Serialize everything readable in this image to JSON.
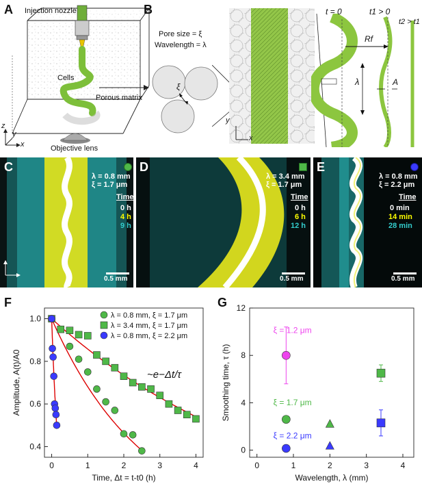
{
  "panels": {
    "A": {
      "letter": "A",
      "injection_nozzle": "Injection nozzle",
      "cells": "Cells",
      "porous_matrix": "Porous matrix",
      "objective_lens": "Objective lens",
      "axis_z": "z",
      "axis_y": "y",
      "axis_x": "x"
    },
    "B": {
      "letter": "B",
      "pore_size": "Pore size = ξ",
      "wavelength": "Wavelength = λ",
      "xi": "ξ",
      "t0": "t = 0",
      "t1": "t1 > 0",
      "t2": "t2 > t1",
      "Rf": "Rf",
      "lambda": "λ",
      "A": "A",
      "axis_y": "y",
      "axis_x": "x"
    },
    "C": {
      "letter": "C",
      "lambda": "λ = 0.8 mm",
      "xi": "ξ = 1.7 μm",
      "time_header": "Time",
      "times": [
        "0 h",
        "4 h",
        "9 h"
      ],
      "scale": "0.5 mm",
      "marker_color": "#4fb848"
    },
    "D": {
      "letter": "D",
      "lambda": "λ = 3.4 mm",
      "xi": "ξ = 1.7 μm",
      "time_header": "Time",
      "times": [
        "0 h",
        "6 h",
        "12 h"
      ],
      "scale": "0.5 mm",
      "marker_color": "#4fb848"
    },
    "E": {
      "letter": "E",
      "lambda": "λ = 0.8 mm",
      "xi": "ξ = 2.2 μm",
      "time_header": "Time",
      "times": [
        "0 min",
        "14 min",
        "28 min"
      ],
      "scale": "0.5 mm",
      "marker_color": "#3a3aff"
    }
  },
  "time_colors": [
    "#ffffff",
    "#ffff00",
    "#33cccc"
  ],
  "colors": {
    "green": "#4fb848",
    "blue": "#3a3aff",
    "magenta": "#ee44ee",
    "red": "#dd0000",
    "gel_green": "#8cc63f",
    "cyan": "#22c4c4",
    "yellow": "#f2f200"
  },
  "chart_data": [
    {
      "panel": "F",
      "type": "scatter",
      "xlabel": "Time, Δt = t-t0 (h)",
      "ylabel": "Amplitude, A(t)/A0",
      "xlim": [
        -0.2,
        4.2
      ],
      "ylim": [
        0.35,
        1.05
      ],
      "xticks": [
        0,
        1,
        2,
        3,
        4
      ],
      "yticks": [
        0.4,
        0.6,
        0.8,
        1.0
      ],
      "annotation": "~e−Δt/τ",
      "legend_position": "top-right",
      "series": [
        {
          "name": "λ = 0.8 mm, ξ = 1.7 μm",
          "marker": "circle",
          "color": "#4fb848",
          "x": [
            0,
            0.25,
            0.5,
            0.75,
            1.0,
            1.25,
            1.5,
            1.75,
            2.0,
            2.25,
            2.5
          ],
          "y": [
            1.0,
            0.95,
            0.87,
            0.81,
            0.75,
            0.67,
            0.61,
            0.57,
            0.46,
            0.455,
            0.38
          ],
          "fit_tau": 2.6
        },
        {
          "name": "λ = 3.4 mm, ξ = 1.7 μm",
          "marker": "square",
          "color": "#4fb848",
          "x": [
            0,
            0.25,
            0.5,
            0.75,
            1.0,
            1.25,
            1.5,
            1.75,
            2.0,
            2.25,
            2.5,
            2.75,
            3.0,
            3.25,
            3.5,
            3.75,
            4.0
          ],
          "y": [
            1.0,
            0.95,
            0.945,
            0.925,
            0.92,
            0.83,
            0.8,
            0.77,
            0.73,
            0.7,
            0.68,
            0.67,
            0.64,
            0.6,
            0.57,
            0.55,
            0.53
          ],
          "fit_tau": 6.5
        },
        {
          "name": "λ = 0.8 mm, ξ = 2.2 μm",
          "marker": "circle",
          "color": "#3a3aff",
          "x": [
            0,
            0.02,
            0.04,
            0.06,
            0.08,
            0.1,
            0.12,
            0.14
          ],
          "y": [
            1.0,
            0.86,
            0.82,
            0.73,
            0.6,
            0.58,
            0.55,
            0.5
          ],
          "fit_tau": 0.2
        }
      ]
    },
    {
      "panel": "G",
      "type": "scatter",
      "xlabel": "Wavelength, λ (mm)",
      "ylabel": "Smoothing time, τ (h)",
      "xlim": [
        -0.2,
        4.3
      ],
      "ylim": [
        -0.6,
        12
      ],
      "xticks": [
        0,
        1,
        2,
        3,
        4
      ],
      "yticks": [
        0,
        4,
        8,
        12
      ],
      "annotations": [
        {
          "text": "ξ = 1.2 μm",
          "color": "#ee44ee"
        },
        {
          "text": "ξ = 1.7 μm",
          "color": "#4fb848"
        },
        {
          "text": "ξ = 2.2 μm",
          "color": "#3a3aff"
        }
      ],
      "series": [
        {
          "name": "ξ = 1.2 μm",
          "color": "#ee44ee",
          "marker": "circle",
          "x": [
            0.8
          ],
          "y": [
            8.0
          ],
          "err": [
            2.4
          ]
        },
        {
          "name": "ξ = 1.7 μm",
          "color": "#4fb848",
          "marker": "mixed",
          "points": [
            {
              "x": 0.8,
              "y": 2.6,
              "marker": "circle",
              "err": 0
            },
            {
              "x": 2.0,
              "y": 2.2,
              "marker": "triangle",
              "err": 0
            },
            {
              "x": 3.4,
              "y": 6.5,
              "marker": "square",
              "err": 0.7
            }
          ]
        },
        {
          "name": "ξ = 2.2 μm",
          "color": "#3a3aff",
          "marker": "mixed",
          "points": [
            {
              "x": 0.8,
              "y": 0.15,
              "marker": "circle",
              "err": 0
            },
            {
              "x": 2.0,
              "y": 0.35,
              "marker": "triangle",
              "err": 0
            },
            {
              "x": 3.4,
              "y": 2.3,
              "marker": "square",
              "err": 1.1
            }
          ]
        }
      ]
    }
  ]
}
